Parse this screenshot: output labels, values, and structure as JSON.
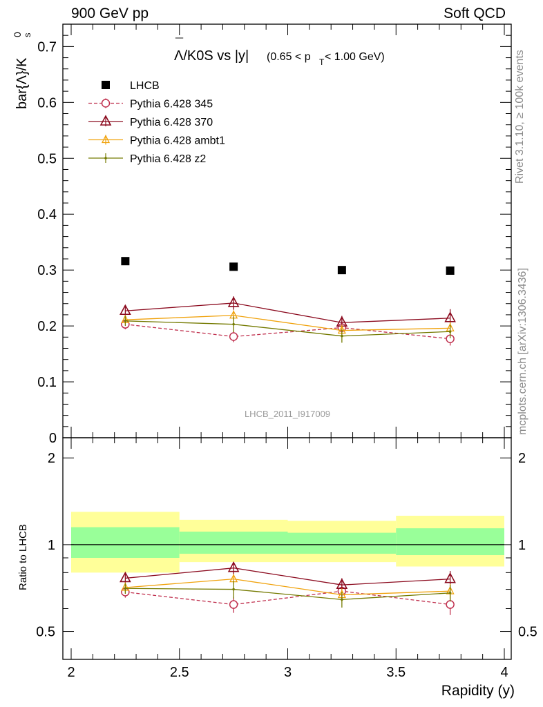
{
  "header": {
    "left": "900 GeV pp",
    "right": "Soft QCD"
  },
  "side_labels": {
    "rivet": "Rivet 3.1.10, ≥ 100k events",
    "mcplots": "mcplots.cern.ch [arXiv:1306.3436]"
  },
  "chart_data": [
    {
      "type": "scatter",
      "panel": "main",
      "title_main": "Λ/K0S vs |y|",
      "title_overline": "¯",
      "title_cut": "(0.65 < p",
      "title_cut_sub": "T",
      "title_cut_end": " < 1.00 GeV)",
      "ylabel": "bar{Λ}/K",
      "ylabel_sup": "0",
      "ylabel_sub": "s",
      "watermark": "LHCB_2011_I917009",
      "xlim": [
        2,
        4
      ],
      "ylim": [
        0,
        0.74
      ],
      "yticks": [
        "0",
        "0.1",
        "0.2",
        "0.3",
        "0.4",
        "0.5",
        "0.6",
        "0.7"
      ],
      "x": [
        2.25,
        2.75,
        3.25,
        3.75
      ],
      "legend_position": "top-left",
      "series": [
        {
          "name": "LHCB",
          "color": "#000000",
          "marker": "square",
          "values": [
            0.316,
            0.306,
            0.3,
            0.299
          ],
          "errors": [
            0.003,
            0.003,
            0.003,
            0.003
          ]
        },
        {
          "name": "Pythia 6.428 345",
          "color": "#c0304e",
          "marker": "circle",
          "dashed": true,
          "values": [
            0.203,
            0.181,
            0.197,
            0.177
          ],
          "errors": [
            0.009,
            0.01,
            0.012,
            0.012
          ]
        },
        {
          "name": "Pythia 6.428 370",
          "color": "#8b0a1e",
          "marker": "triangle",
          "values": [
            0.227,
            0.241,
            0.206,
            0.214
          ],
          "errors": [
            0.01,
            0.012,
            0.012,
            0.016
          ]
        },
        {
          "name": "Pythia 6.428 ambt1",
          "color": "#f0a20c",
          "marker": "triangle-small",
          "values": [
            0.211,
            0.219,
            0.192,
            0.196
          ],
          "errors": [
            0.008,
            0.009,
            0.01,
            0.011
          ]
        },
        {
          "name": "Pythia 6.428 z2",
          "color": "#747a00",
          "marker": "dot",
          "values": [
            0.209,
            0.203,
            0.182,
            0.19
          ],
          "errors": [
            0.009,
            0.014,
            0.012,
            0.012
          ]
        }
      ]
    },
    {
      "type": "scatter",
      "panel": "ratio",
      "ylabel": "Ratio to LHCB",
      "xlabel": "Rapidity (y)",
      "xlim": [
        2,
        4
      ],
      "ylim": [
        0.4,
        2.35
      ],
      "log_y": true,
      "xticks": [
        "2",
        "2.5",
        "3",
        "3.5",
        "4"
      ],
      "yticks": [
        "0.5",
        "1",
        "2"
      ],
      "x": [
        2.25,
        2.75,
        3.25,
        3.75
      ],
      "bands": {
        "edges": [
          2.0,
          2.5,
          3.0,
          3.5,
          4.0
        ],
        "outer": [
          [
            0.8,
            1.3
          ],
          [
            0.87,
            1.22
          ],
          [
            0.87,
            1.21
          ],
          [
            0.84,
            1.26
          ]
        ],
        "inner": [
          [
            0.9,
            1.15
          ],
          [
            0.93,
            1.11
          ],
          [
            0.93,
            1.1
          ],
          [
            0.92,
            1.14
          ]
        ],
        "outer_color": "#ffff99",
        "inner_color": "#99ff99"
      },
      "series": [
        {
          "name": "Pythia 6.428 345",
          "color": "#c0304e",
          "marker": "circle",
          "dashed": true,
          "values": [
            0.685,
            0.62,
            0.69,
            0.62
          ],
          "errors": [
            0.03,
            0.04,
            0.04,
            0.05
          ]
        },
        {
          "name": "Pythia 6.428 370",
          "color": "#8b0a1e",
          "marker": "triangle",
          "values": [
            0.765,
            0.83,
            0.725,
            0.76
          ],
          "errors": [
            0.03,
            0.04,
            0.04,
            0.05
          ]
        },
        {
          "name": "Pythia 6.428 ambt1",
          "color": "#f0a20c",
          "marker": "triangle-small",
          "values": [
            0.71,
            0.76,
            0.67,
            0.69
          ],
          "errors": [
            0.03,
            0.03,
            0.035,
            0.04
          ]
        },
        {
          "name": "Pythia 6.428 z2",
          "color": "#747a00",
          "marker": "dot",
          "values": [
            0.705,
            0.7,
            0.645,
            0.68
          ],
          "errors": [
            0.03,
            0.05,
            0.04,
            0.045
          ]
        }
      ]
    }
  ]
}
